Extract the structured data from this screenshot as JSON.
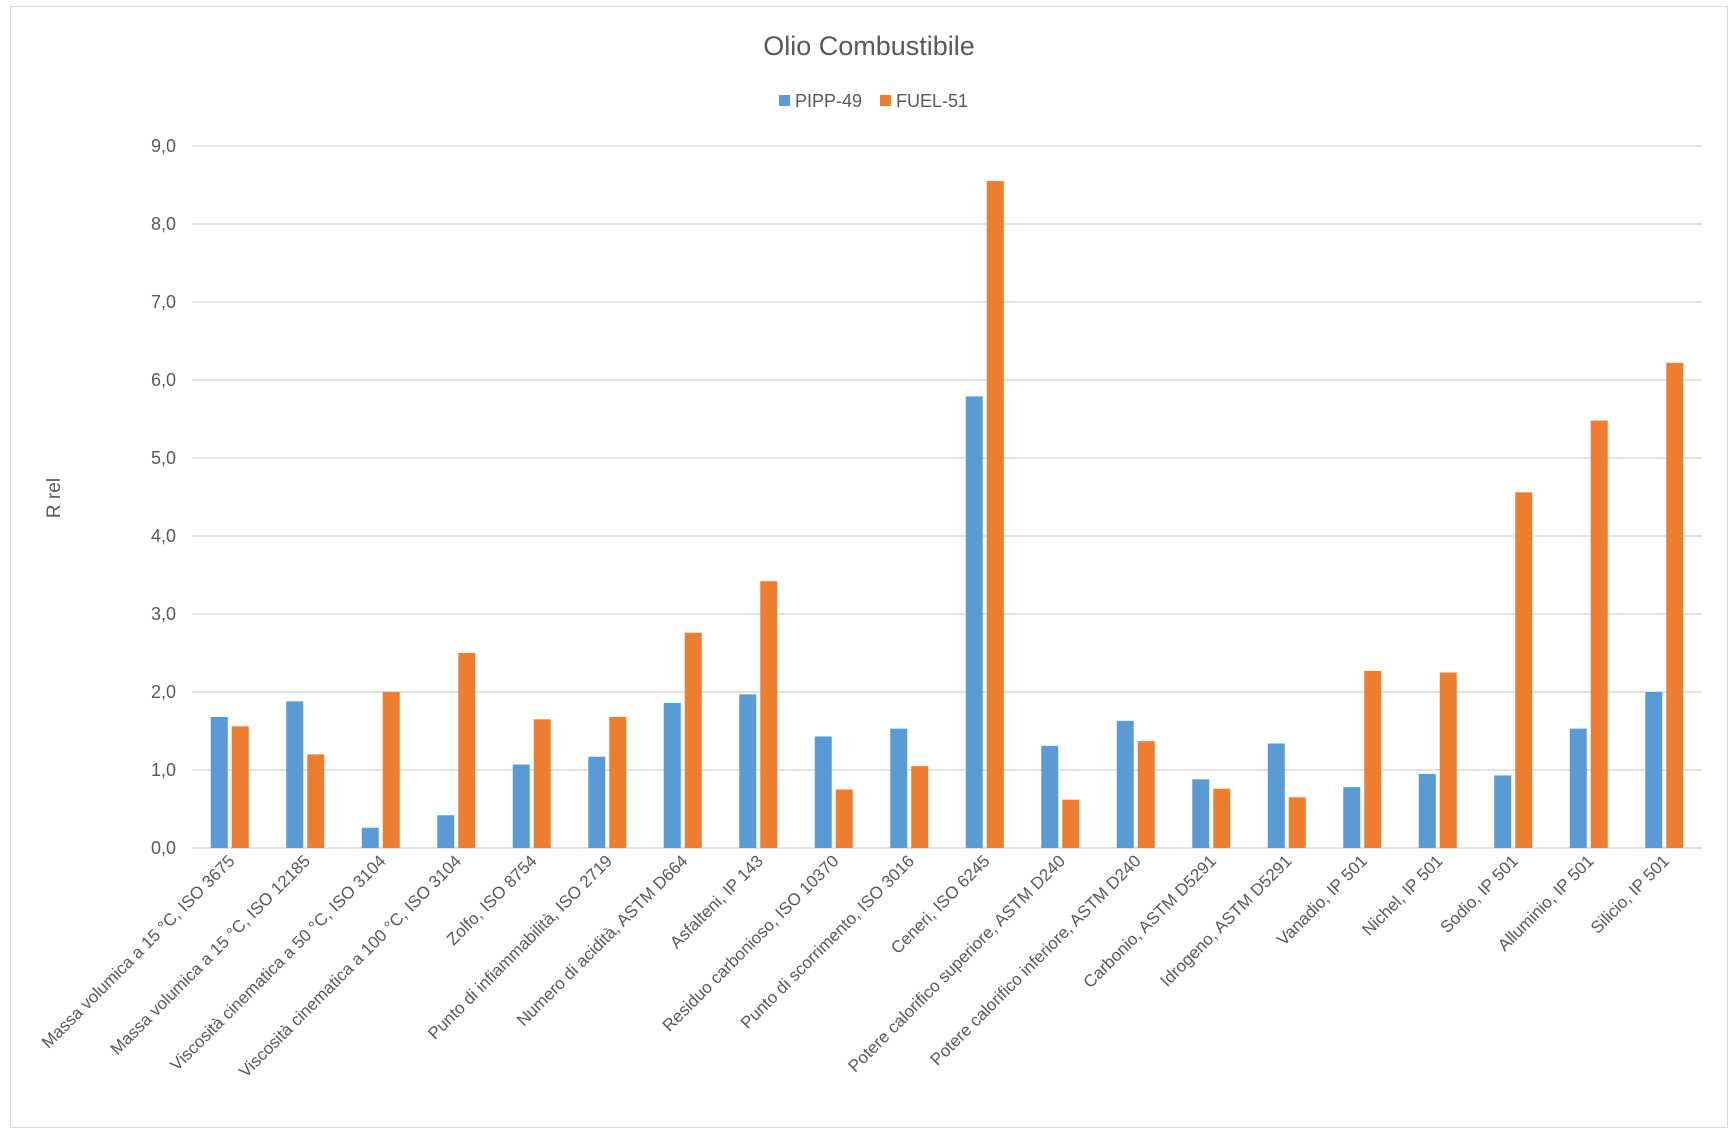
{
  "chart_data": {
    "type": "bar",
    "title": "Olio Combustibile",
    "xlabel": "",
    "ylabel": "R rel",
    "ylim": [
      0,
      9
    ],
    "yticks": [
      "0,0",
      "1,0",
      "2,0",
      "3,0",
      "4,0",
      "5,0",
      "6,0",
      "7,0",
      "8,0",
      "9,0"
    ],
    "grid": true,
    "legend_position": "top",
    "categories": [
      "Massa volumica a 15 °C, ISO 3675",
      "Massa volumica a 15 °C, ISO 12185",
      "Viscosità cinematica a 50 °C, ISO 3104",
      "Viscosità cinematica a 100 °C, ISO 3104",
      "Zolfo, ISO 8754",
      "Punto di infiammabilità, ISO 2719",
      "Numero di acidità, ASTM D664",
      "Asfalteni, IP 143",
      "Residuo carbonioso, ISO 10370",
      "Punto di scorrimento, ISO 3016",
      "Ceneri, ISO 6245",
      "Potere calorifico superiore, ASTM D240",
      "Potere calorifico inferiore, ASTM D240",
      "Carbonio, ASTM D5291",
      "Idrogeno, ASTM D5291",
      "Vanadio, IP 501",
      "Nichel, IP 501",
      "Sodio, IP 501",
      "Alluminio, IP 501",
      "Silicio, IP 501"
    ],
    "series": [
      {
        "name": "PIPP-49",
        "color": "#5b9bd5",
        "values": [
          1.68,
          1.88,
          0.26,
          0.42,
          1.07,
          1.17,
          1.86,
          1.97,
          1.43,
          1.53,
          5.79,
          1.31,
          1.63,
          0.88,
          1.34,
          0.78,
          0.95,
          0.93,
          1.53,
          2.0
        ]
      },
      {
        "name": "FUEL-51",
        "color": "#ed7d31",
        "values": [
          1.56,
          1.2,
          2.0,
          2.5,
          1.65,
          1.68,
          2.76,
          3.42,
          0.75,
          1.05,
          8.55,
          0.62,
          1.37,
          0.76,
          0.65,
          2.27,
          2.25,
          4.56,
          5.48,
          6.22
        ]
      }
    ]
  }
}
